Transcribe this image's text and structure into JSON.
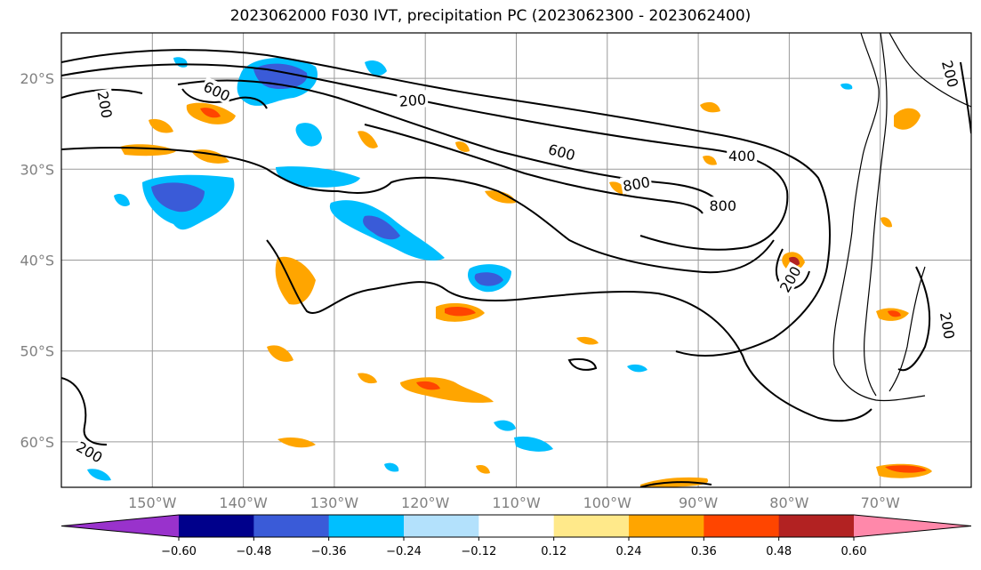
{
  "title": "2023062000 F030 IVT, precipitation PC (2023062300 - 2023062400)",
  "chart_data": {
    "type": "map",
    "projection": "PlateCarree",
    "extent": {
      "lon": [
        -160,
        -60
      ],
      "lat": [
        -65,
        -15
      ]
    },
    "grid": true,
    "lon_ticks": [
      {
        "value": -150,
        "label": "150°W"
      },
      {
        "value": -140,
        "label": "140°W"
      },
      {
        "value": -130,
        "label": "130°W"
      },
      {
        "value": -120,
        "label": "120°W"
      },
      {
        "value": -110,
        "label": "110°W"
      },
      {
        "value": -100,
        "label": "100°W"
      },
      {
        "value": -90,
        "label": "90°W"
      },
      {
        "value": -80,
        "label": "80°W"
      },
      {
        "value": -70,
        "label": "70°W"
      }
    ],
    "lat_ticks": [
      {
        "value": -20,
        "label": "20°S"
      },
      {
        "value": -30,
        "label": "30°S"
      },
      {
        "value": -40,
        "label": "40°S"
      },
      {
        "value": -50,
        "label": "50°S"
      },
      {
        "value": -60,
        "label": "60°S"
      }
    ],
    "ivt_contour_levels": [
      200,
      400,
      600,
      800
    ],
    "contour_labels": [
      {
        "text": "200",
        "lon": -155.2,
        "lat": -22.9,
        "rot": 80
      },
      {
        "text": "600",
        "lon": -142.9,
        "lat": -21.4,
        "rot": 25
      },
      {
        "text": "200",
        "lon": -121.4,
        "lat": -22.4,
        "rot": -5
      },
      {
        "text": "600",
        "lon": -105,
        "lat": -28.1,
        "rot": 15
      },
      {
        "text": "400",
        "lon": -85.2,
        "lat": -28.5,
        "rot": 0
      },
      {
        "text": "800",
        "lon": -96.8,
        "lat": -31.6,
        "rot": -10
      },
      {
        "text": "800",
        "lon": -87.3,
        "lat": -34,
        "rot": 0
      },
      {
        "text": "200",
        "lon": -62.3,
        "lat": -19.5,
        "rot": 75
      },
      {
        "text": "200",
        "lon": -79.9,
        "lat": -42.1,
        "rot": -60
      },
      {
        "text": "200",
        "lon": -156.9,
        "lat": -61.1,
        "rot": 30
      },
      {
        "text": "200",
        "lon": -62.6,
        "lat": -47.2,
        "rot": 80
      }
    ],
    "colorbar": {
      "boundaries": [
        -0.6,
        -0.48,
        -0.36,
        -0.24,
        -0.12,
        0.12,
        0.24,
        0.36,
        0.48,
        0.6
      ],
      "tick_labels": [
        "−0.60",
        "−0.48",
        "−0.36",
        "−0.24",
        "−0.12",
        "0.12",
        "0.24",
        "0.36",
        "0.48",
        "0.60"
      ],
      "colors": [
        "#9932CC",
        "#00008B",
        "#3A5BD8",
        "#00BFFF",
        "#B3E1FC",
        "#FFFFFF",
        "#FFE98A",
        "#FFA500",
        "#FF4500",
        "#B22222",
        "#FF88AA"
      ],
      "extend": "both"
    }
  }
}
